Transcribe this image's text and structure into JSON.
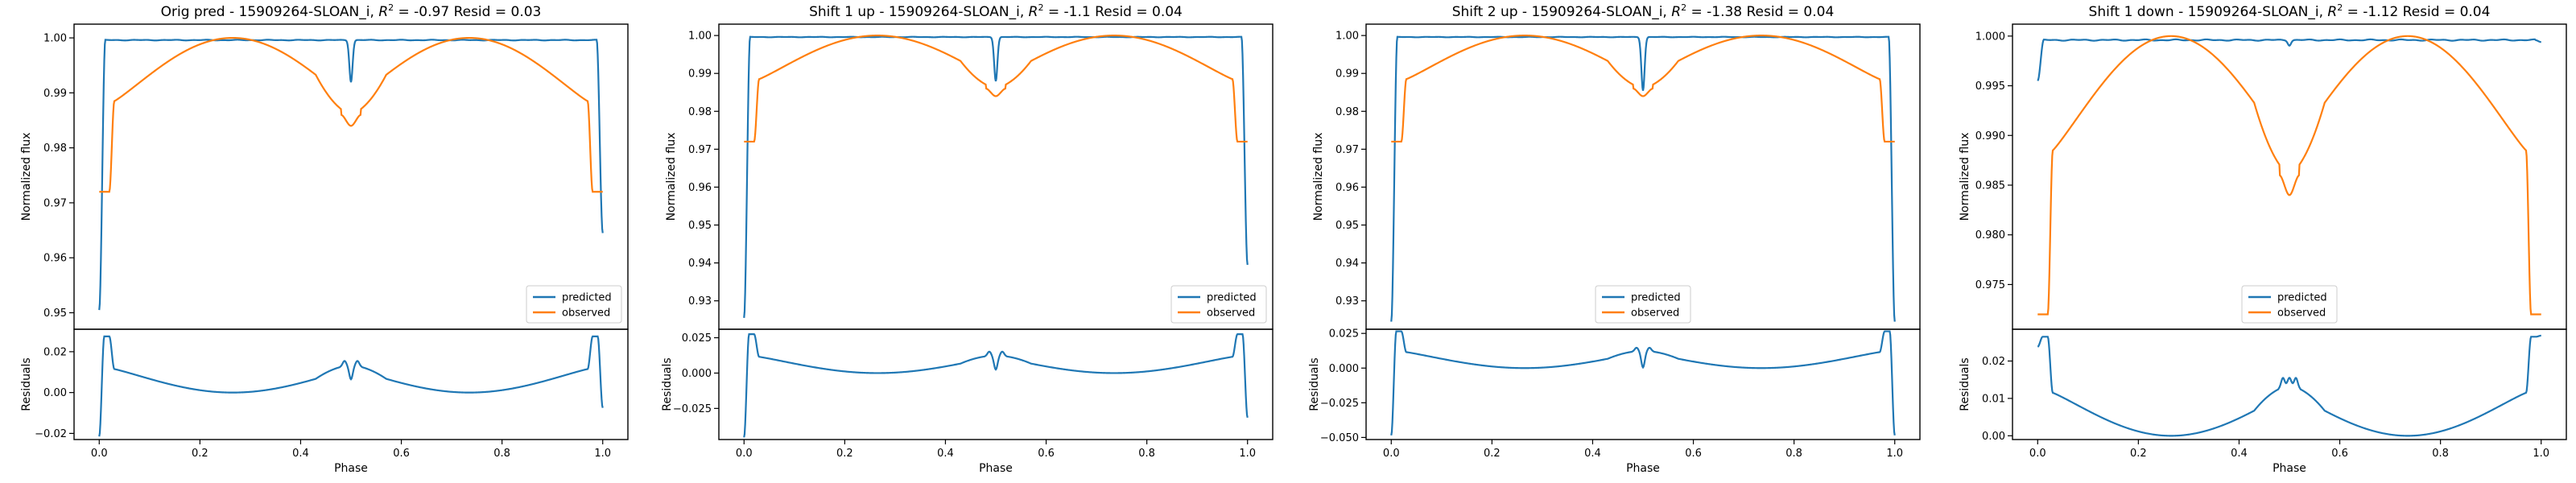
{
  "chart_data": [
    {
      "type": "line",
      "title": "Orig pred - 15909264-SLOAN_i, R² = -0.97 Resid = 0.03",
      "title_parts": {
        "prefix": "Orig pred - 15909264-SLOAN_i, ",
        "r2_value": " = -0.97 Resid = 0.03"
      },
      "main": {
        "ylabel": "Normalized flux",
        "ylim": [
          0.947,
          1.0025
        ],
        "yticks": [
          0.95,
          0.96,
          0.97,
          0.98,
          0.99,
          1.0
        ],
        "yticklabels": [
          "0.95",
          "0.96",
          "0.97",
          "0.98",
          "0.99",
          "1.00"
        ],
        "legend": {
          "position": "lower right",
          "entries": [
            "predicted",
            "observed"
          ]
        },
        "predicted": {
          "base": 0.9996,
          "end_left": 0.9505,
          "end_right": 0.9645,
          "dip": 0.992
        },
        "observed": {
          "end_level": 0.972,
          "shoulder": 0.9885,
          "peak": 1.0,
          "trough": 0.986,
          "center_dip": 0.984
        }
      },
      "resid": {
        "ylabel": "Residuals",
        "ylim": [
          -0.023,
          0.031
        ],
        "yticks": [
          -0.02,
          0.0,
          0.02
        ],
        "yticklabels": [
          "−0.02",
          "0.00",
          "0.02"
        ],
        "xlabel": "Phase",
        "curve": {
          "edge_top": 0.0275,
          "shoulder": 0.0115,
          "minimum": 0.0,
          "center": 0.0135,
          "center_bump": 0.016,
          "center_dip": 0.0065,
          "end_left": -0.0215,
          "end_right": -0.0075
        }
      },
      "xticks": [
        0.0,
        0.2,
        0.4,
        0.6,
        0.8,
        1.0
      ],
      "xticklabels": [
        "0.0",
        "0.2",
        "0.4",
        "0.6",
        "0.8",
        "1.0"
      ],
      "xlim": [
        -0.05,
        1.05
      ]
    },
    {
      "type": "line",
      "title": "Shift 1 up - 15909264-SLOAN_i, R² = -1.1 Resid = 0.04",
      "title_parts": {
        "prefix": "Shift 1 up - 15909264-SLOAN_i, ",
        "r2_value": " = -1.1 Resid = 0.04"
      },
      "main": {
        "ylabel": "Normalized flux",
        "ylim": [
          0.9225,
          1.003
        ],
        "yticks": [
          0.93,
          0.94,
          0.95,
          0.96,
          0.97,
          0.98,
          0.99,
          1.0
        ],
        "yticklabels": [
          "0.93",
          "0.94",
          "0.95",
          "0.96",
          "0.97",
          "0.98",
          "0.99",
          "1.00"
        ],
        "legend": {
          "position": "lower right",
          "entries": [
            "predicted",
            "observed"
          ]
        },
        "predicted": {
          "base": 0.9996,
          "end_left": 0.9255,
          "end_right": 0.9395,
          "dip": 0.988
        },
        "observed": {
          "end_level": 0.972,
          "shoulder": 0.9885,
          "peak": 1.0,
          "trough": 0.986,
          "center_dip": 0.984
        }
      },
      "resid": {
        "ylabel": "Residuals",
        "ylim": [
          -0.047,
          0.031
        ],
        "yticks": [
          -0.025,
          0.0,
          0.025
        ],
        "yticklabels": [
          "−0.025",
          "0.000",
          "0.025"
        ],
        "xlabel": "Phase",
        "curve": {
          "edge_top": 0.0275,
          "shoulder": 0.0115,
          "minimum": 0.0,
          "center": 0.0125,
          "center_bump": 0.0155,
          "center_dip": 0.0025,
          "end_left": -0.0455,
          "end_right": -0.0315
        }
      },
      "xticks": [
        0.0,
        0.2,
        0.4,
        0.6,
        0.8,
        1.0
      ],
      "xticklabels": [
        "0.0",
        "0.2",
        "0.4",
        "0.6",
        "0.8",
        "1.0"
      ],
      "xlim": [
        -0.05,
        1.05
      ]
    },
    {
      "type": "line",
      "title": "Shift 2 up - 15909264-SLOAN_i, R² = -1.38 Resid = 0.04",
      "title_parts": {
        "prefix": "Shift 2 up - 15909264-SLOAN_i, ",
        "r2_value": " = -1.38 Resid = 0.04"
      },
      "main": {
        "ylabel": "Normalized flux",
        "ylim": [
          0.9225,
          1.003
        ],
        "yticks": [
          0.93,
          0.94,
          0.95,
          0.96,
          0.97,
          0.98,
          0.99,
          1.0
        ],
        "yticklabels": [
          "0.93",
          "0.94",
          "0.95",
          "0.96",
          "0.97",
          "0.98",
          "0.99",
          "1.00"
        ],
        "legend": {
          "position": "lower center",
          "entries": [
            "predicted",
            "observed"
          ]
        },
        "predicted": {
          "base": 0.9996,
          "end_left": 0.9245,
          "end_right": 0.9245,
          "dip": 0.9855
        },
        "observed": {
          "end_level": 0.972,
          "shoulder": 0.9885,
          "peak": 1.0,
          "trough": 0.986,
          "center_dip": 0.984
        }
      },
      "resid": {
        "ylabel": "Residuals",
        "ylim": [
          -0.0515,
          0.028
        ],
        "yticks": [
          -0.05,
          -0.025,
          0.0,
          0.025
        ],
        "yticklabels": [
          "−0.050",
          "−0.025",
          "0.000",
          "0.025"
        ],
        "xlabel": "Phase",
        "curve": {
          "edge_top": 0.0265,
          "shoulder": 0.0115,
          "minimum": 0.0,
          "center": 0.0125,
          "center_bump": 0.015,
          "center_dip": 0.0005,
          "end_left": -0.0485,
          "end_right": -0.0485
        }
      },
      "xticks": [
        0.0,
        0.2,
        0.4,
        0.6,
        0.8,
        1.0
      ],
      "xticklabels": [
        "0.0",
        "0.2",
        "0.4",
        "0.6",
        "0.8",
        "1.0"
      ],
      "xlim": [
        -0.05,
        1.05
      ]
    },
    {
      "type": "line",
      "title": "Shift 1 down - 15909264-SLOAN_i, R² = -1.12 Resid = 0.04",
      "title_parts": {
        "prefix": "Shift 1 down - 15909264-SLOAN_i, ",
        "r2_value": " = -1.12 Resid = 0.04"
      },
      "main": {
        "ylabel": "Normalized flux",
        "ylim": [
          0.9705,
          1.0012
        ],
        "yticks": [
          0.975,
          0.98,
          0.985,
          0.99,
          0.995,
          1.0
        ],
        "yticklabels": [
          "0.975",
          "0.980",
          "0.985",
          "0.990",
          "0.995",
          "1.000"
        ],
        "legend": {
          "position": "lower center",
          "entries": [
            "predicted",
            "observed"
          ]
        },
        "predicted": {
          "base": 0.9996,
          "end_left": 0.9955,
          "end_right": 0.9994,
          "dip": 0.9991
        },
        "observed": {
          "end_level": 0.972,
          "shoulder": 0.9885,
          "peak": 1.0,
          "trough": 0.986,
          "center_dip": 0.984
        }
      },
      "resid": {
        "ylabel": "Residuals",
        "ylim": [
          -0.001,
          0.0285
        ],
        "yticks": [
          0.0,
          0.01,
          0.02
        ],
        "yticklabels": [
          "0.00",
          "0.01",
          "0.02"
        ],
        "xlabel": "Phase",
        "curve": {
          "edge_top": 0.0265,
          "shoulder": 0.0115,
          "minimum": 0.0,
          "center": 0.0135,
          "center_bump": 0.016,
          "center_dip": 0.0155,
          "end_left": 0.0238,
          "end_right": 0.0268
        }
      },
      "xticks": [
        0.0,
        0.2,
        0.4,
        0.6,
        0.8,
        1.0
      ],
      "xticklabels": [
        "0.0",
        "0.2",
        "0.4",
        "0.6",
        "0.8",
        "1.0"
      ],
      "xlim": [
        -0.05,
        1.05
      ]
    }
  ],
  "colors": {
    "predicted": "#1f77b4",
    "observed": "#ff7f0e",
    "axes": "#000000"
  },
  "labels": {
    "r2_symbol": "R",
    "r2_superscript": "2",
    "predicted": "predicted",
    "observed": "observed"
  }
}
